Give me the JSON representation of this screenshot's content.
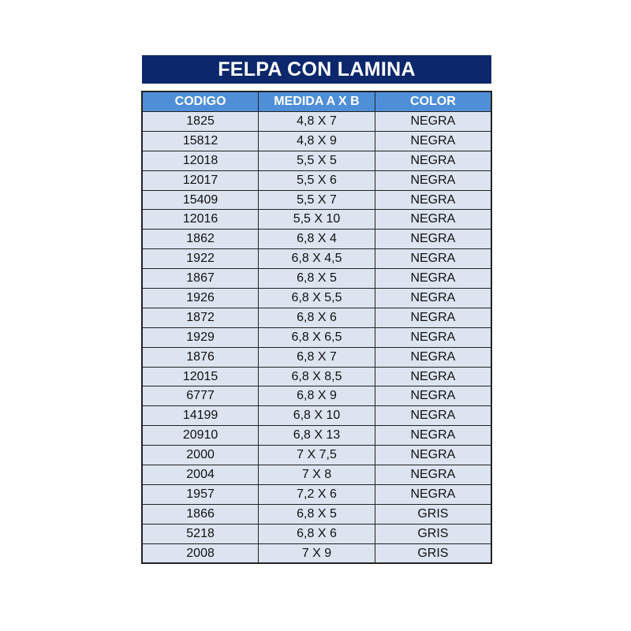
{
  "title": "FELPA CON LAMINA",
  "columns": [
    "CODIGO",
    "MEDIDA A X B",
    "COLOR"
  ],
  "rows": [
    [
      "1825",
      "4,8 X 7",
      "NEGRA"
    ],
    [
      "15812",
      "4,8 X 9",
      "NEGRA"
    ],
    [
      "12018",
      "5,5 X 5",
      "NEGRA"
    ],
    [
      "12017",
      "5,5 X 6",
      "NEGRA"
    ],
    [
      "15409",
      "5,5 X 7",
      "NEGRA"
    ],
    [
      "12016",
      "5,5 X 10",
      "NEGRA"
    ],
    [
      "1862",
      "6,8 X 4",
      "NEGRA"
    ],
    [
      "1922",
      "6,8 X 4,5",
      "NEGRA"
    ],
    [
      "1867",
      "6,8 X 5",
      "NEGRA"
    ],
    [
      "1926",
      "6,8 X 5,5",
      "NEGRA"
    ],
    [
      "1872",
      "6,8 X 6",
      "NEGRA"
    ],
    [
      "1929",
      "6,8 X 6,5",
      "NEGRA"
    ],
    [
      "1876",
      "6,8 X 7",
      "NEGRA"
    ],
    [
      "12015",
      "6,8 X 8,5",
      "NEGRA"
    ],
    [
      "6777",
      "6,8 X 9",
      "NEGRA"
    ],
    [
      "14199",
      "6,8 X 10",
      "NEGRA"
    ],
    [
      "20910",
      "6,8 X 13",
      "NEGRA"
    ],
    [
      "2000",
      "7 X 7,5",
      "NEGRA"
    ],
    [
      "2004",
      "7 X 8",
      "NEGRA"
    ],
    [
      "1957",
      "7,2 X 6",
      "NEGRA"
    ],
    [
      "1866",
      "6,8 X 5",
      "GRIS"
    ],
    [
      "5218",
      "6,8 X 6",
      "GRIS"
    ],
    [
      "2008",
      "7 X 9",
      "GRIS"
    ]
  ],
  "colors": {
    "title_bg": "#0c276b",
    "header_bg": "#4f8fd8",
    "row_bg": "#dce4f0"
  }
}
